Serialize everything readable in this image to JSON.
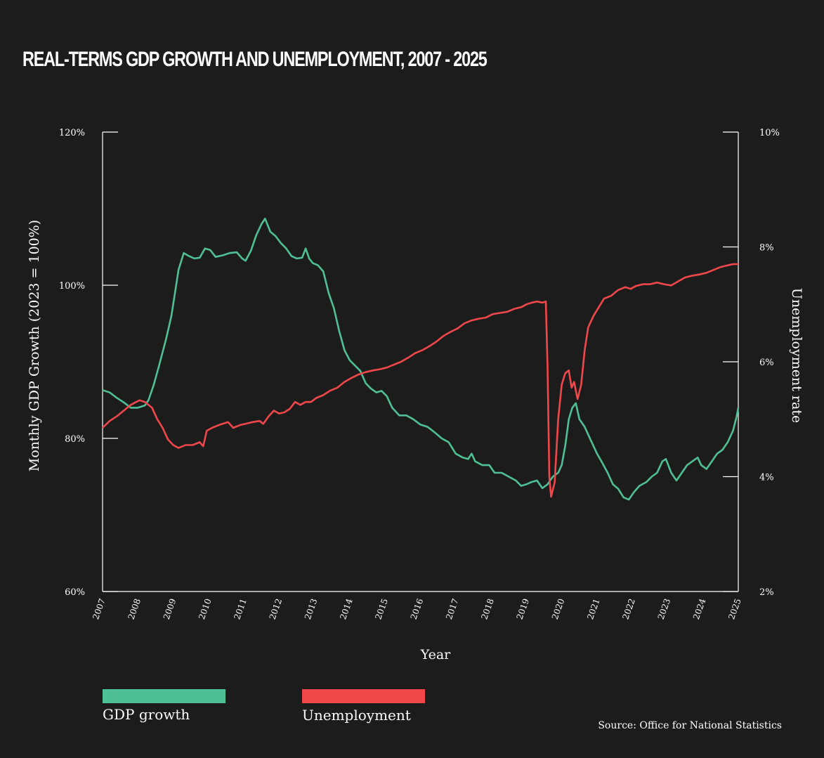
{
  "title": "REAL-TERMS GDP GROWTH AND UNEMPLOYMENT, 2007 - 2025",
  "source": "Source: Office for National Statistics",
  "legend": {
    "gdp_label": "GDP growth",
    "unemployment_label": "Unemployment"
  },
  "colors": {
    "background": "#1c1c1c",
    "gdp": "#4fbf96",
    "unemployment": "#f0474a",
    "axis": "#ffffff"
  },
  "chart_data": {
    "type": "line",
    "title": "REAL-TERMS GDP GROWTH AND UNEMPLOYMENT, 2007 - 2025",
    "xlabel": "Year",
    "ylabel_left": "Monthly GDP Growth (2023 = 100%)",
    "ylabel_right": "Unemployment rate",
    "xlim": [
      2007,
      2025
    ],
    "ylim_left": [
      60,
      120
    ],
    "ylim_right": [
      2,
      10
    ],
    "x_ticks": [
      "2007",
      "2008",
      "2009",
      "2010",
      "2011",
      "2012",
      "2013",
      "2014",
      "2015",
      "2016",
      "2017",
      "2018",
      "2019",
      "2020",
      "2021",
      "2022",
      "2023",
      "2024",
      "2025"
    ],
    "y_ticks_left": [
      "60%",
      "80%",
      "100%",
      "120%"
    ],
    "y_ticks_right": [
      "2%",
      "4%",
      "6%",
      "8%",
      "10%"
    ],
    "series": [
      {
        "name": "GDP growth",
        "axis": "left",
        "points": [
          [
            2007.0,
            86.3
          ],
          [
            2007.2,
            86.0
          ],
          [
            2007.4,
            85.3
          ],
          [
            2007.6,
            84.7
          ],
          [
            2007.8,
            84.0
          ],
          [
            2008.0,
            84.0
          ],
          [
            2008.2,
            84.3
          ],
          [
            2008.3,
            85.0
          ],
          [
            2008.45,
            87.0
          ],
          [
            2008.6,
            89.5
          ],
          [
            2008.8,
            93.0
          ],
          [
            2008.95,
            96.0
          ],
          [
            2009.05,
            99.0
          ],
          [
            2009.15,
            102.0
          ],
          [
            2009.3,
            104.2
          ],
          [
            2009.45,
            103.8
          ],
          [
            2009.6,
            103.5
          ],
          [
            2009.75,
            103.6
          ],
          [
            2009.9,
            104.8
          ],
          [
            2010.05,
            104.6
          ],
          [
            2010.2,
            103.7
          ],
          [
            2010.4,
            103.9
          ],
          [
            2010.6,
            104.2
          ],
          [
            2010.8,
            104.3
          ],
          [
            2010.95,
            103.5
          ],
          [
            2011.05,
            103.2
          ],
          [
            2011.2,
            104.5
          ],
          [
            2011.35,
            106.5
          ],
          [
            2011.5,
            108.0
          ],
          [
            2011.6,
            108.7
          ],
          [
            2011.75,
            107.0
          ],
          [
            2011.9,
            106.4
          ],
          [
            2012.05,
            105.5
          ],
          [
            2012.2,
            104.8
          ],
          [
            2012.35,
            103.8
          ],
          [
            2012.5,
            103.5
          ],
          [
            2012.65,
            103.6
          ],
          [
            2012.75,
            104.8
          ],
          [
            2012.85,
            103.5
          ],
          [
            2012.95,
            102.9
          ],
          [
            2013.1,
            102.6
          ],
          [
            2013.25,
            101.8
          ],
          [
            2013.4,
            99.0
          ],
          [
            2013.55,
            97.0
          ],
          [
            2013.7,
            94.0
          ],
          [
            2013.85,
            91.5
          ],
          [
            2014.0,
            90.2
          ],
          [
            2014.15,
            89.5
          ],
          [
            2014.3,
            88.8
          ],
          [
            2014.45,
            87.2
          ],
          [
            2014.6,
            86.5
          ],
          [
            2014.75,
            86.0
          ],
          [
            2014.9,
            86.2
          ],
          [
            2015.05,
            85.5
          ],
          [
            2015.2,
            84.0
          ],
          [
            2015.4,
            83.0
          ],
          [
            2015.6,
            83.0
          ],
          [
            2015.8,
            82.5
          ],
          [
            2016.0,
            81.8
          ],
          [
            2016.2,
            81.5
          ],
          [
            2016.4,
            80.8
          ],
          [
            2016.6,
            80.0
          ],
          [
            2016.8,
            79.5
          ],
          [
            2017.0,
            78.0
          ],
          [
            2017.2,
            77.5
          ],
          [
            2017.35,
            77.3
          ],
          [
            2017.45,
            78.0
          ],
          [
            2017.55,
            77.0
          ],
          [
            2017.75,
            76.5
          ],
          [
            2017.95,
            76.5
          ],
          [
            2018.1,
            75.5
          ],
          [
            2018.3,
            75.5
          ],
          [
            2018.5,
            75.0
          ],
          [
            2018.7,
            74.5
          ],
          [
            2018.85,
            73.8
          ],
          [
            2019.0,
            74.0
          ],
          [
            2019.15,
            74.3
          ],
          [
            2019.3,
            74.5
          ],
          [
            2019.45,
            73.5
          ],
          [
            2019.6,
            74.0
          ],
          [
            2019.75,
            75.0
          ],
          [
            2019.9,
            75.5
          ],
          [
            2020.0,
            76.5
          ],
          [
            2020.1,
            79.0
          ],
          [
            2020.2,
            82.5
          ],
          [
            2020.3,
            84.0
          ],
          [
            2020.4,
            84.6
          ],
          [
            2020.5,
            82.5
          ],
          [
            2020.65,
            81.5
          ],
          [
            2020.8,
            80.0
          ],
          [
            2021.0,
            78.0
          ],
          [
            2021.15,
            76.8
          ],
          [
            2021.3,
            75.5
          ],
          [
            2021.45,
            74.0
          ],
          [
            2021.6,
            73.4
          ],
          [
            2021.75,
            72.3
          ],
          [
            2021.9,
            72.0
          ],
          [
            2022.05,
            73.0
          ],
          [
            2022.2,
            73.8
          ],
          [
            2022.4,
            74.3
          ],
          [
            2022.55,
            75.0
          ],
          [
            2022.7,
            75.5
          ],
          [
            2022.85,
            77.0
          ],
          [
            2022.95,
            77.3
          ],
          [
            2023.1,
            75.5
          ],
          [
            2023.25,
            74.5
          ],
          [
            2023.4,
            75.5
          ],
          [
            2023.55,
            76.5
          ],
          [
            2023.7,
            77.0
          ],
          [
            2023.85,
            77.5
          ],
          [
            2023.95,
            76.5
          ],
          [
            2024.1,
            76.0
          ],
          [
            2024.25,
            77.0
          ],
          [
            2024.4,
            78.0
          ],
          [
            2024.55,
            78.5
          ],
          [
            2024.7,
            79.5
          ],
          [
            2024.85,
            81.0
          ],
          [
            2024.95,
            82.8
          ],
          [
            2025.0,
            84.0
          ]
        ]
      },
      {
        "name": "Unemployment",
        "axis": "right",
        "points": [
          [
            2007.0,
            4.85
          ],
          [
            2007.2,
            4.97
          ],
          [
            2007.4,
            5.05
          ],
          [
            2007.6,
            5.15
          ],
          [
            2007.8,
            5.25
          ],
          [
            2007.95,
            5.3
          ],
          [
            2008.05,
            5.33
          ],
          [
            2008.2,
            5.3
          ],
          [
            2008.4,
            5.2
          ],
          [
            2008.55,
            5.0
          ],
          [
            2008.7,
            4.85
          ],
          [
            2008.85,
            4.65
          ],
          [
            2009.0,
            4.55
          ],
          [
            2009.15,
            4.5
          ],
          [
            2009.35,
            4.55
          ],
          [
            2009.55,
            4.55
          ],
          [
            2009.75,
            4.6
          ],
          [
            2009.85,
            4.53
          ],
          [
            2009.95,
            4.8
          ],
          [
            2010.1,
            4.85
          ],
          [
            2010.3,
            4.9
          ],
          [
            2010.55,
            4.95
          ],
          [
            2010.7,
            4.85
          ],
          [
            2010.9,
            4.9
          ],
          [
            2011.05,
            4.92
          ],
          [
            2011.25,
            4.95
          ],
          [
            2011.45,
            4.97
          ],
          [
            2011.55,
            4.92
          ],
          [
            2011.7,
            5.05
          ],
          [
            2011.85,
            5.15
          ],
          [
            2012.0,
            5.1
          ],
          [
            2012.15,
            5.12
          ],
          [
            2012.3,
            5.18
          ],
          [
            2012.45,
            5.3
          ],
          [
            2012.6,
            5.25
          ],
          [
            2012.75,
            5.3
          ],
          [
            2012.9,
            5.3
          ],
          [
            2013.05,
            5.37
          ],
          [
            2013.25,
            5.42
          ],
          [
            2013.45,
            5.5
          ],
          [
            2013.65,
            5.55
          ],
          [
            2013.85,
            5.65
          ],
          [
            2014.05,
            5.72
          ],
          [
            2014.25,
            5.78
          ],
          [
            2014.45,
            5.82
          ],
          [
            2014.65,
            5.85
          ],
          [
            2014.85,
            5.87
          ],
          [
            2015.05,
            5.9
          ],
          [
            2015.25,
            5.95
          ],
          [
            2015.45,
            6.0
          ],
          [
            2015.65,
            6.07
          ],
          [
            2015.85,
            6.15
          ],
          [
            2016.05,
            6.2
          ],
          [
            2016.25,
            6.27
          ],
          [
            2016.45,
            6.35
          ],
          [
            2016.65,
            6.45
          ],
          [
            2016.85,
            6.52
          ],
          [
            2017.05,
            6.58
          ],
          [
            2017.25,
            6.67
          ],
          [
            2017.45,
            6.72
          ],
          [
            2017.65,
            6.75
          ],
          [
            2017.85,
            6.77
          ],
          [
            2018.05,
            6.83
          ],
          [
            2018.25,
            6.85
          ],
          [
            2018.45,
            6.87
          ],
          [
            2018.65,
            6.92
          ],
          [
            2018.85,
            6.95
          ],
          [
            2019.0,
            7.0
          ],
          [
            2019.15,
            7.03
          ],
          [
            2019.3,
            7.05
          ],
          [
            2019.45,
            7.03
          ],
          [
            2019.55,
            7.05
          ],
          [
            2019.6,
            5.9
          ],
          [
            2019.65,
            4.0
          ],
          [
            2019.7,
            3.65
          ],
          [
            2019.8,
            3.9
          ],
          [
            2019.9,
            5.0
          ],
          [
            2020.0,
            5.6
          ],
          [
            2020.1,
            5.8
          ],
          [
            2020.2,
            5.85
          ],
          [
            2020.28,
            5.55
          ],
          [
            2020.35,
            5.65
          ],
          [
            2020.45,
            5.35
          ],
          [
            2020.55,
            5.6
          ],
          [
            2020.65,
            6.2
          ],
          [
            2020.75,
            6.6
          ],
          [
            2020.9,
            6.8
          ],
          [
            2021.05,
            6.95
          ],
          [
            2021.2,
            7.1
          ],
          [
            2021.4,
            7.15
          ],
          [
            2021.6,
            7.25
          ],
          [
            2021.8,
            7.3
          ],
          [
            2021.95,
            7.27
          ],
          [
            2022.1,
            7.32
          ],
          [
            2022.3,
            7.35
          ],
          [
            2022.5,
            7.35
          ],
          [
            2022.7,
            7.38
          ],
          [
            2022.9,
            7.35
          ],
          [
            2023.1,
            7.33
          ],
          [
            2023.3,
            7.4
          ],
          [
            2023.5,
            7.47
          ],
          [
            2023.7,
            7.5
          ],
          [
            2023.9,
            7.52
          ],
          [
            2024.1,
            7.55
          ],
          [
            2024.3,
            7.6
          ],
          [
            2024.5,
            7.65
          ],
          [
            2024.7,
            7.68
          ],
          [
            2024.85,
            7.7
          ],
          [
            2025.0,
            7.7
          ]
        ]
      }
    ]
  }
}
